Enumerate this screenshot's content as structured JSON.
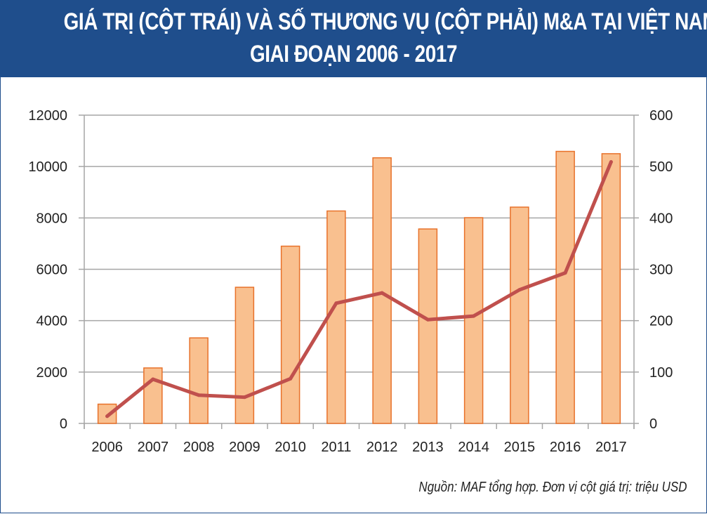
{
  "title_line1": "GIÁ TRỊ (CỘT TRÁI) VÀ SỐ THƯƠNG VỤ (CỘT PHẢI) M&A TẠI VIỆT NAM",
  "title_line2": "GIAI ĐOẠN 2006 - 2017",
  "source": "Nguồn: MAF tổng hợp. Đơn vị cột giá trị: triệu USD",
  "colors": {
    "header": "#1f4e8c",
    "bar_fill": "#f9c08f",
    "bar_stroke": "#e8712a",
    "line": "#c0504d",
    "grid": "#a6a6a6"
  },
  "chart_data": {
    "type": "bar+line",
    "categories": [
      "2006",
      "2007",
      "2008",
      "2009",
      "2010",
      "2011",
      "2012",
      "2013",
      "2014",
      "2015",
      "2016",
      "2017"
    ],
    "series": [
      {
        "type": "bar",
        "axis": "left",
        "values": [
          750,
          2160,
          3330,
          5300,
          6900,
          8270,
          10340,
          7570,
          8010,
          8420,
          10590,
          10500
        ]
      },
      {
        "type": "line",
        "axis": "right",
        "values": [
          14,
          86,
          55,
          51,
          87,
          234,
          254,
          202,
          209,
          260,
          293,
          509
        ]
      }
    ],
    "ylim_left": [
      0,
      12000
    ],
    "yticks_left": [
      "0",
      "2000",
      "4000",
      "6000",
      "8000",
      "10000",
      "12000"
    ],
    "ylim_right": [
      0,
      600
    ],
    "yticks_right": [
      "0",
      "100",
      "200",
      "300",
      "400",
      "500",
      "600"
    ],
    "grid": true,
    "legend": "none"
  }
}
